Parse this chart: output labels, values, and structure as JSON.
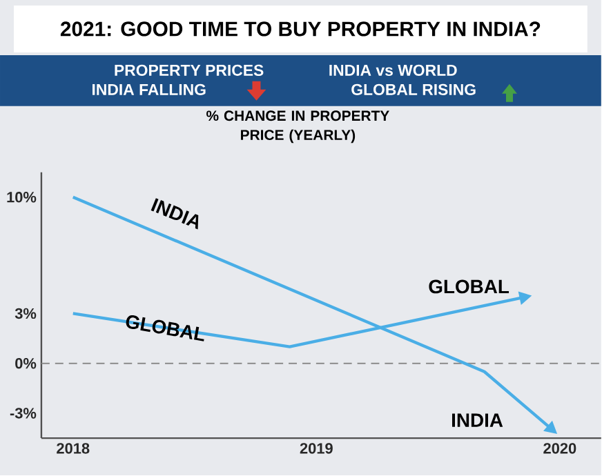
{
  "chart_data": {
    "type": "line",
    "title": "2021: GOOD TIME TO BUY PROPERTY IN INDIA?",
    "annotations": [
      "PROPERTY PRICES",
      "INDIA FALLING",
      "INDIA vs WORLD",
      "GLOBAL RISING",
      "% CHANGE IN PROPERTY PRICE (YEARLY)"
    ],
    "xlim": [
      2017.87,
      2020.17
    ],
    "ylim": [
      -4.5,
      11.5
    ],
    "xticks": [
      2018,
      2019,
      2020
    ],
    "yticks": [
      {
        "value": -3,
        "label": "-3%"
      },
      {
        "value": 0,
        "label": "0%"
      },
      {
        "value": 3,
        "label": "3%"
      },
      {
        "value": 10,
        "label": "10%"
      }
    ],
    "series": [
      {
        "name": "INDIA",
        "color": "#4aaee6",
        "x": [
          2018,
          2019.69,
          2019.97
        ],
        "values": [
          10,
          -0.5,
          -4
        ]
      },
      {
        "name": "GLOBAL",
        "color": "#4aaee6",
        "x": [
          2018,
          2018.89,
          2019.86
        ],
        "values": [
          3,
          1,
          4
        ]
      }
    ],
    "ref_lines": [
      {
        "axis": "y",
        "value": 0,
        "color": "#888888",
        "line_style": "dashed"
      }
    ],
    "marker": "none",
    "line_style": "solid"
  }
}
